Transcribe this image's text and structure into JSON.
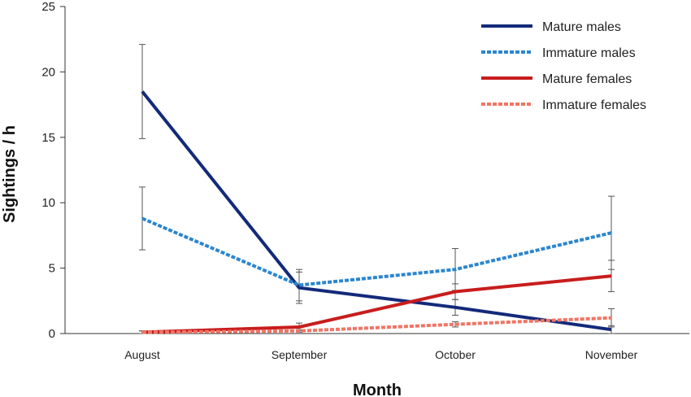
{
  "chart_data": {
    "type": "line",
    "xlabel": "Month",
    "ylabel": "Sightings / h",
    "categories": [
      "August",
      "September",
      "October",
      "November"
    ],
    "ylim": [
      0,
      25
    ],
    "yticks": [
      0,
      5,
      10,
      15,
      20,
      25
    ],
    "grid": false,
    "legend": "top-right",
    "series": [
      {
        "name": "Mature males",
        "color": "#132a7a",
        "style": "solid",
        "values": [
          18.5,
          3.5,
          2.0,
          0.3
        ],
        "error": [
          3.6,
          1.2,
          0.6,
          0.3
        ]
      },
      {
        "name": "Immature males",
        "color": "#2b86cf",
        "style": "dashed",
        "values": [
          8.8,
          3.7,
          4.9,
          7.7
        ],
        "error": [
          2.4,
          1.2,
          1.6,
          2.8
        ]
      },
      {
        "name": "Mature females",
        "color": "#c81d1d",
        "style": "solid",
        "values": [
          0.1,
          0.5,
          3.2,
          4.4
        ],
        "error": [
          0.1,
          0.3,
          0.6,
          1.2
        ]
      },
      {
        "name": "Immature females",
        "color": "#f07565",
        "style": "dashed",
        "values": [
          0.1,
          0.2,
          0.7,
          1.2
        ],
        "error": [
          0.1,
          0.1,
          0.2,
          0.7
        ]
      }
    ]
  }
}
